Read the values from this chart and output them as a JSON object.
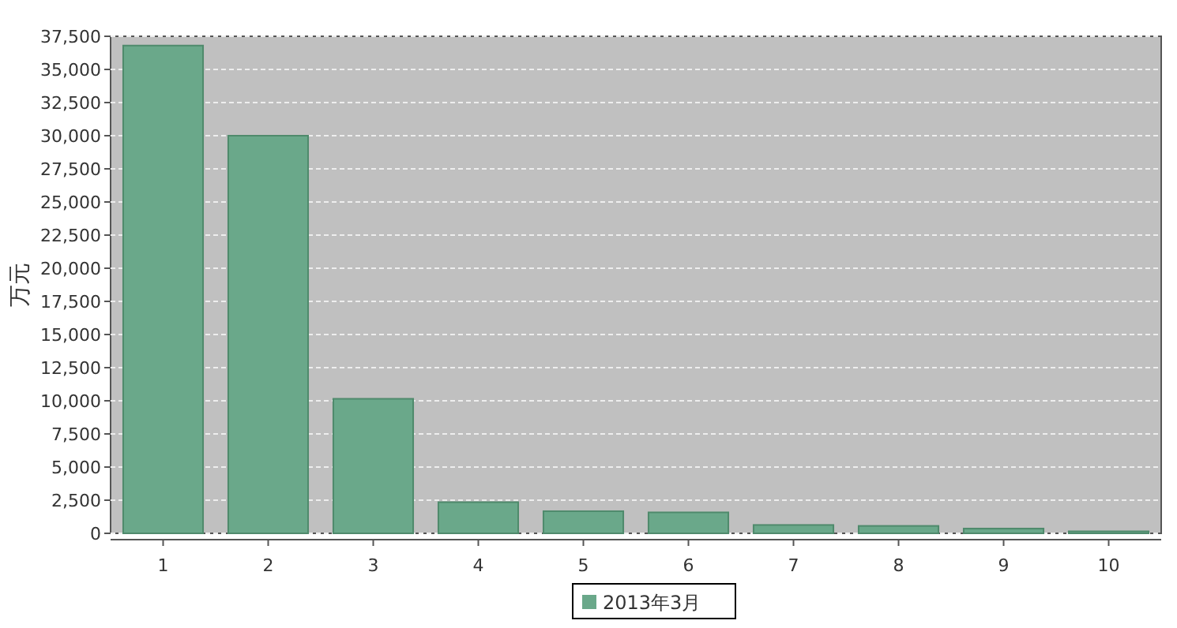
{
  "chart_data": {
    "type": "bar",
    "ylabel": "万元",
    "categories": [
      "1",
      "2",
      "3",
      "4",
      "5",
      "6",
      "7",
      "8",
      "9",
      "10"
    ],
    "series": [
      {
        "name": "2013年3月",
        "color": "#6aa88a",
        "values": [
          36800,
          30000,
          10150,
          2350,
          1670,
          1580,
          630,
          560,
          360,
          150
        ]
      }
    ],
    "ylim": [
      0,
      37500
    ],
    "yticks": [
      0,
      {
        "value": 2500,
        "label": "2,500"
      },
      {
        "value": 5000,
        "label": "5,000"
      },
      {
        "value": 7500,
        "label": "7,500"
      },
      {
        "value": 10000,
        "label": "10,000"
      },
      {
        "value": 12500,
        "label": "12,500"
      },
      {
        "value": 15000,
        "label": "15,000"
      },
      {
        "value": 17500,
        "label": "17,500"
      },
      {
        "value": 20000,
        "label": "20,000"
      },
      {
        "value": 22500,
        "label": "22,500"
      },
      {
        "value": 25000,
        "label": "25,000"
      },
      {
        "value": 27500,
        "label": "27,500"
      },
      {
        "value": 30000,
        "label": "30,000"
      },
      {
        "value": 32500,
        "label": "32,500"
      },
      {
        "value": 35000,
        "label": "35,000"
      },
      {
        "value": 37500,
        "label": "37,500"
      }
    ],
    "grid": "y",
    "legend": "bottom"
  }
}
